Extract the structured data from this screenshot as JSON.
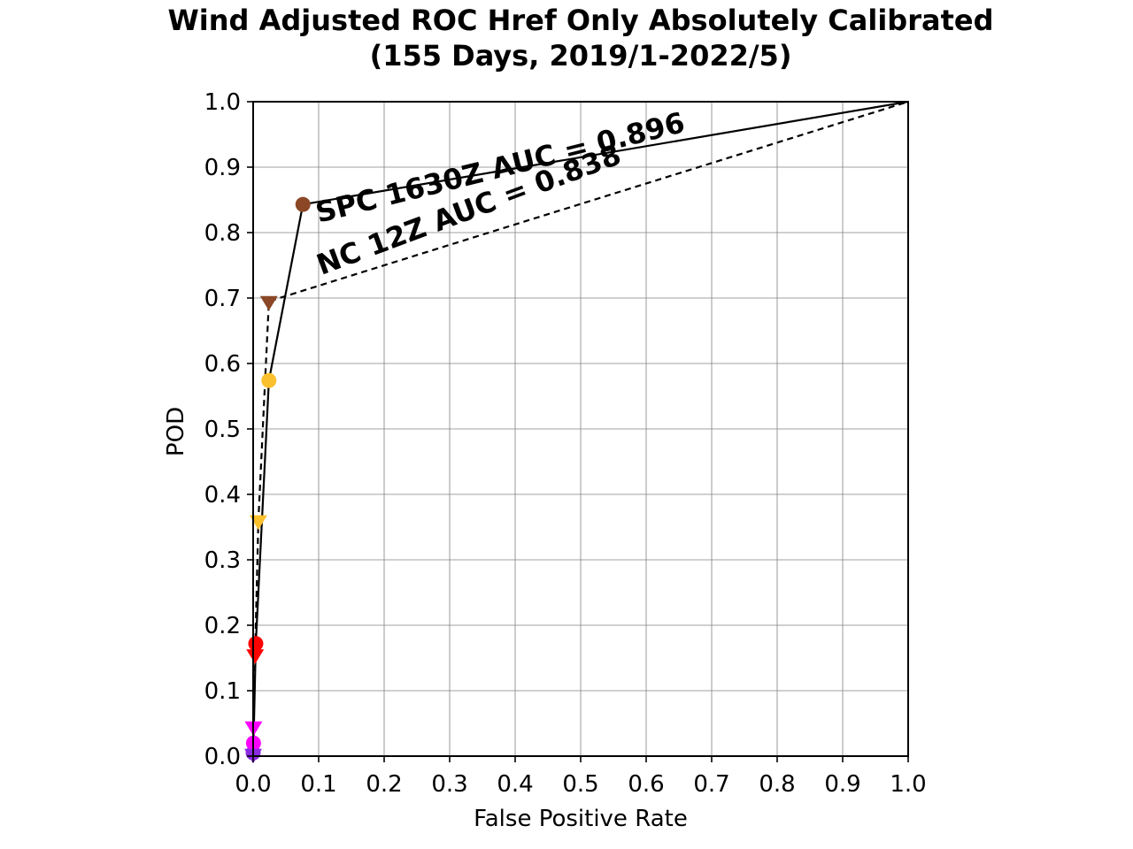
{
  "chart_data": {
    "type": "line",
    "title": [
      "Wind Adjusted ROC Href Only Absolutely Calibrated",
      "(155 Days, 2019/1-2022/5)"
    ],
    "xlabel": "False Positive Rate",
    "ylabel": "POD",
    "xlim": [
      0.0,
      1.0
    ],
    "ylim": [
      0.0,
      1.0
    ],
    "xticks": [
      0.0,
      0.1,
      0.2,
      0.3,
      0.4,
      0.5,
      0.6,
      0.7,
      0.8,
      0.9,
      1.0
    ],
    "yticks": [
      0.0,
      0.1,
      0.2,
      0.3,
      0.4,
      0.5,
      0.6,
      0.7,
      0.8,
      0.9,
      1.0
    ],
    "xtick_labels": [
      "0.0",
      "0.1",
      "0.2",
      "0.3",
      "0.4",
      "0.5",
      "0.6",
      "0.7",
      "0.8",
      "0.9",
      "1.0"
    ],
    "ytick_labels": [
      "0.0",
      "0.1",
      "0.2",
      "0.3",
      "0.4",
      "0.5",
      "0.6",
      "0.7",
      "0.8",
      "0.9",
      "1.0"
    ],
    "grid": true,
    "series": [
      {
        "name": "SPC 1630Z",
        "line_style": "solid",
        "marker": "circle",
        "points": [
          {
            "x": 0.0,
            "y": 0.0,
            "color": null
          },
          {
            "x": 0.0,
            "y": 0.005,
            "color": "#8a2be2"
          },
          {
            "x": 0.0005,
            "y": 0.02,
            "color": "#ff00ff"
          },
          {
            "x": 0.004,
            "y": 0.172,
            "color": "#ff0000"
          },
          {
            "x": 0.024,
            "y": 0.574,
            "color": "#fbc02d"
          },
          {
            "x": 0.076,
            "y": 0.843,
            "color": "#8b4726"
          },
          {
            "x": 1.0,
            "y": 1.0,
            "color": null
          }
        ]
      },
      {
        "name": "NC 12Z",
        "line_style": "dashed",
        "marker": "triangle-down",
        "points": [
          {
            "x": 0.0,
            "y": 0.0,
            "color": null
          },
          {
            "x": 0.0,
            "y": 0.003,
            "color": "#8a2be2"
          },
          {
            "x": 0.0006,
            "y": 0.045,
            "color": "#ff00ff"
          },
          {
            "x": 0.003,
            "y": 0.155,
            "color": "#ff0000"
          },
          {
            "x": 0.008,
            "y": 0.36,
            "color": "#fbc02d"
          },
          {
            "x": 0.024,
            "y": 0.695,
            "color": "#8b4726"
          },
          {
            "x": 1.0,
            "y": 1.0,
            "color": null
          }
        ]
      }
    ],
    "annotations": [
      {
        "text": "SPC 1630Z AUC = 0.896",
        "x": 0.1,
        "y": 0.815,
        "rotation_deg": -14
      },
      {
        "text": "NC 12Z AUC = 0.838",
        "x": 0.104,
        "y": 0.735,
        "rotation_deg": -20.5
      }
    ]
  }
}
